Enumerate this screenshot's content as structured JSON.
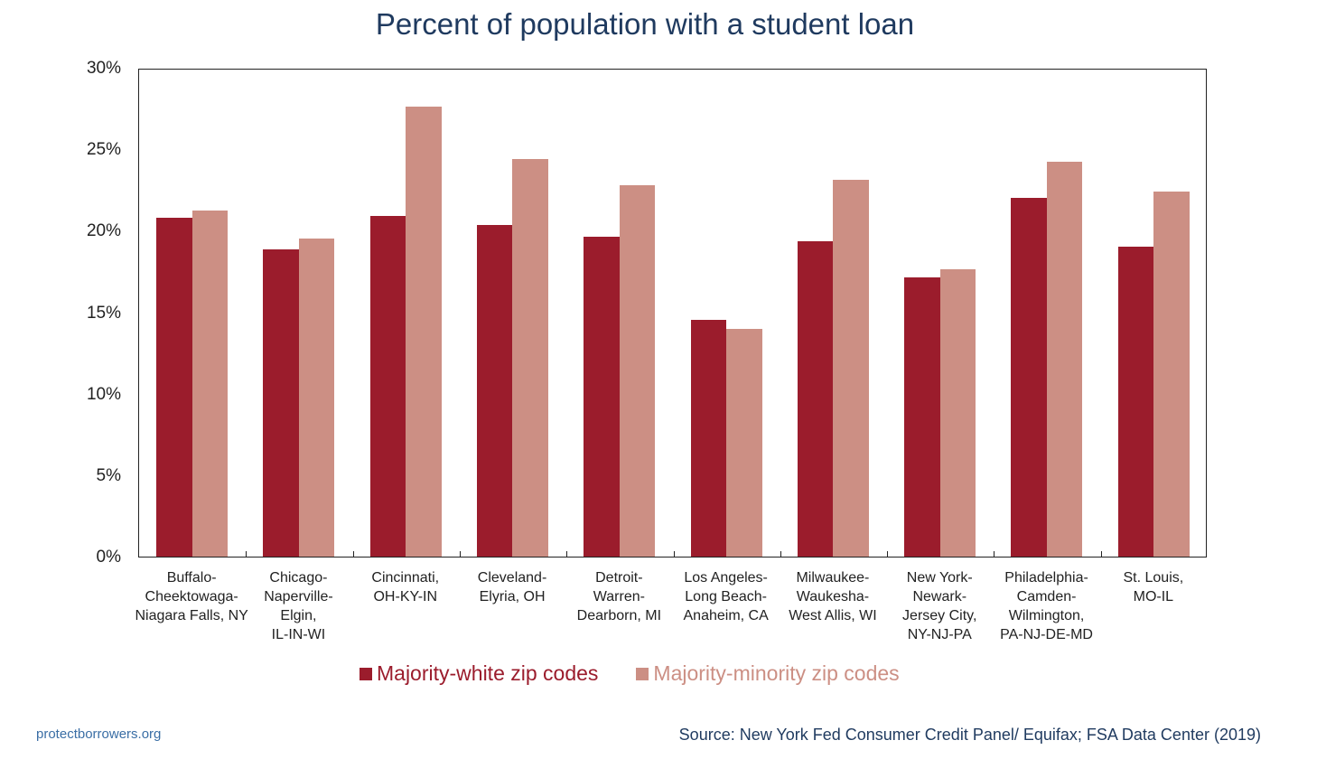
{
  "title": "Percent of population with a student loan",
  "chart_data": {
    "type": "bar",
    "title": "Percent of population with a student loan",
    "xlabel": "",
    "ylabel": "",
    "ylim": [
      0,
      30
    ],
    "yticks": [
      "0%",
      "5%",
      "10%",
      "15%",
      "20%",
      "25%",
      "30%"
    ],
    "grid": false,
    "legend_position": "bottom",
    "categories": [
      "Buffalo-\nCheektowaga-\nNiagara Falls, NY",
      "Chicago-\nNaperville-\nElgin,\nIL-IN-WI",
      "Cincinnati,\nOH-KY-IN",
      "Cleveland-\nElyria, OH",
      "Detroit-\nWarren-\nDearborn, MI",
      "Los Angeles-\nLong Beach-\nAnaheim, CA",
      "Milwaukee-\nWaukesha-\nWest Allis, WI",
      "New York-\nNewark-\nJersey City,\nNY-NJ-PA",
      "Philadelphia-\nCamden-\nWilmington,\nPA-NJ-DE-MD",
      "St. Louis,\nMO-IL"
    ],
    "series": [
      {
        "name": "Majority-white zip codes",
        "color": "#9b1c2c",
        "values": [
          20.9,
          18.9,
          21.0,
          20.4,
          19.7,
          14.6,
          19.4,
          17.2,
          22.1,
          19.1
        ]
      },
      {
        "name": "Majority-minority zip codes",
        "color": "#cc8f84",
        "values": [
          21.3,
          19.6,
          27.7,
          24.5,
          22.9,
          14.0,
          23.2,
          17.7,
          24.3,
          22.5
        ]
      }
    ]
  },
  "footer": {
    "site": "protectborrowers.org",
    "source": "Source: New York Fed Consumer Credit Panel/ Equifax; FSA Data Center (2019)"
  }
}
